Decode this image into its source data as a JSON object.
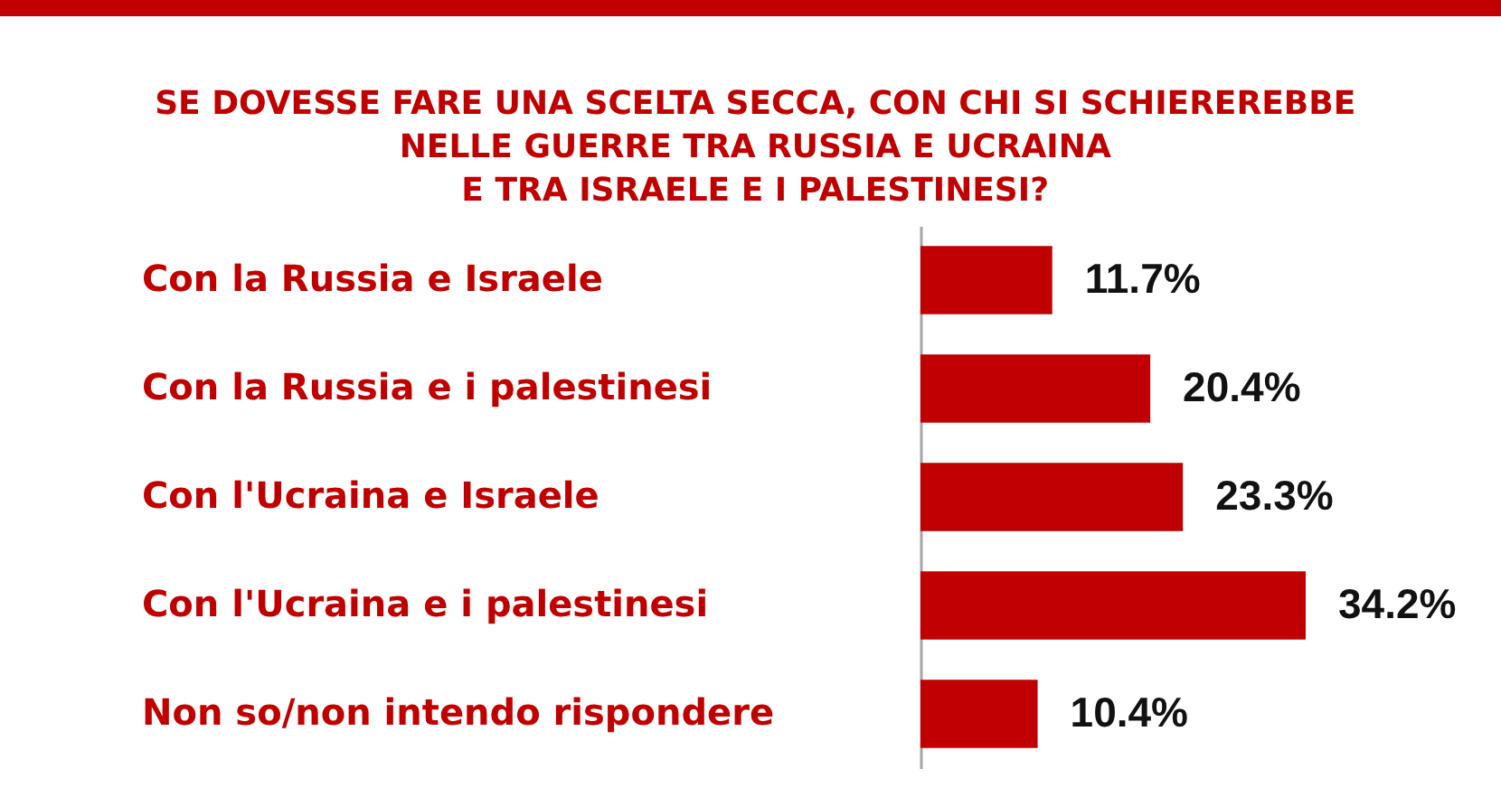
{
  "chart_data": {
    "type": "bar",
    "orientation": "horizontal",
    "title": "SE DOVESSE FARE UNA SCELTA SECCA, CON CHI SI SCHIEREREBBE\nNELLE GUERRE TRA RUSSIA E UCRAINA\nE TRA ISRAELE E I PALESTINESI?",
    "categories": [
      "Con la Russia e Israele",
      "Con la Russia e i palestinesi",
      "Con l'Ucraina e Israele",
      "Con l'Ucraina e i palestinesi",
      "Non so/non intendo rispondere"
    ],
    "values": [
      11.7,
      20.4,
      23.3,
      34.2,
      10.4
    ],
    "color": "#c00000",
    "value_labels": [
      "11.7%",
      "20.4%",
      "23.3%",
      "34.2%",
      "10.4%"
    ]
  }
}
